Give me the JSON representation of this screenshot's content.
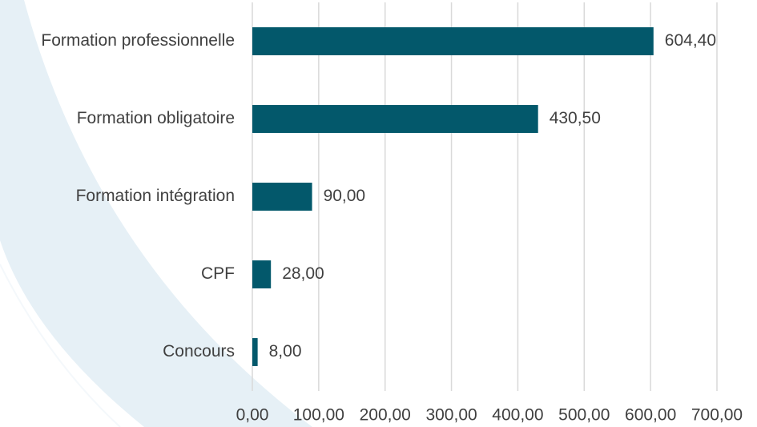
{
  "chart_data": {
    "type": "hbar",
    "categories": [
      "Formation professionnelle",
      "Formation obligatoire",
      "Formation intégration",
      "CPF",
      "Concours"
    ],
    "values": [
      604.4,
      430.5,
      90,
      28,
      8
    ],
    "value_labels": [
      "604,40",
      "430,50",
      "90,00",
      "28,00",
      "8,00"
    ],
    "color": "#03586b",
    "xlim": [
      0,
      700
    ],
    "xticks": [
      {
        "value": 0,
        "label": "0,00"
      },
      {
        "value": 100,
        "label": "100,00"
      },
      {
        "value": 200,
        "label": "200,00"
      },
      {
        "value": 300,
        "label": "300,00"
      },
      {
        "value": 400,
        "label": "400,00"
      },
      {
        "value": 500,
        "label": "500,00"
      },
      {
        "value": 600,
        "label": "600,00"
      },
      {
        "value": 700,
        "label": "700,00"
      }
    ],
    "grid": true
  }
}
